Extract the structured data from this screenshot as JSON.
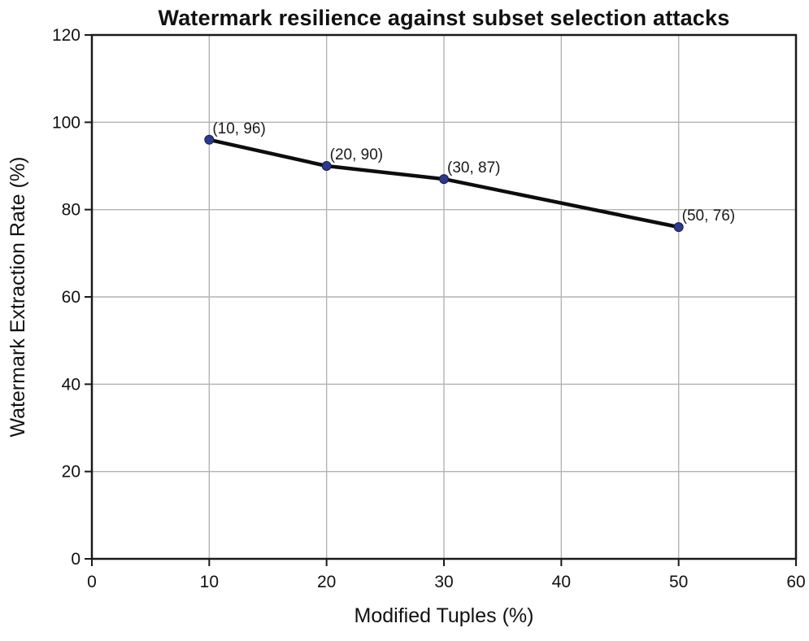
{
  "chart_data": {
    "type": "line",
    "title": "Watermark resilience against subset selection attacks",
    "xlabel": "Modified Tuples (%)",
    "ylabel": "Watermark Extraction Rate (%)",
    "x": [
      10,
      20,
      30,
      50
    ],
    "y": [
      96,
      90,
      87,
      76
    ],
    "point_labels": [
      "(10, 96)",
      "(20, 90)",
      "(30, 87)",
      "(50, 76)"
    ],
    "xlim": [
      0,
      60
    ],
    "ylim": [
      0,
      120
    ],
    "xticks": [
      0,
      10,
      20,
      30,
      40,
      50,
      60
    ],
    "yticks": [
      0,
      20,
      40,
      60,
      80,
      100,
      120
    ],
    "grid": true,
    "legend": "none",
    "line_color": "#0d0d0d",
    "marker_color": "#2c3a8c",
    "marker_edge_color": "#161d45",
    "grid_color": "#b3b3b3",
    "axis_color": "#1a1a1a",
    "background_color": "#ffffff"
  }
}
